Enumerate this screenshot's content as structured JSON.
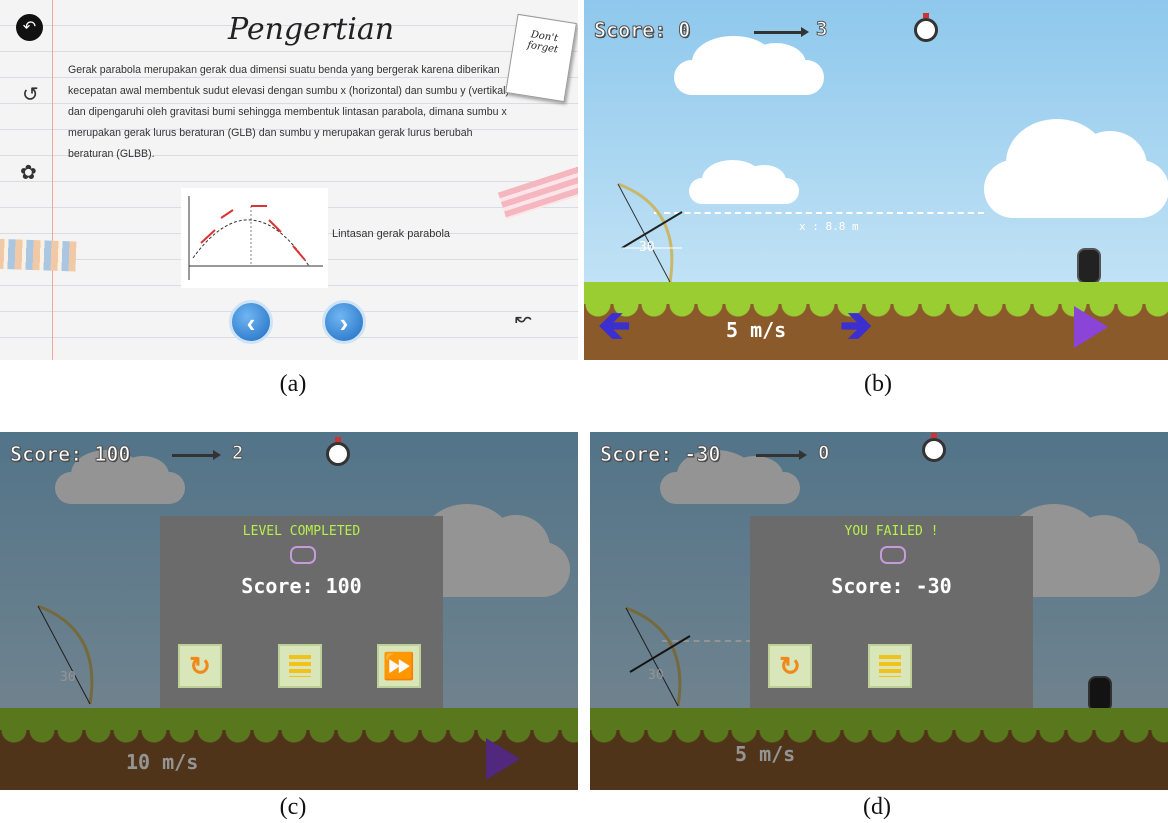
{
  "captions": [
    "(a)",
    "(b)",
    "(c)",
    "(d)"
  ],
  "panel_a": {
    "title": "Pengertian",
    "paragraph": "Gerak parabola merupakan gerak dua dimensi suatu benda yang bergerak karena diberikan kecepatan awal membentuk sudut elevasi dengan sumbu x (horizontal) dan sumbu y (vertikal) dan dipengaruhi oleh gravitasi bumi sehingga membentuk lintasan parabola, dimana sumbu x merupakan gerak lurus beraturan (GLB) dan sumbu y merupakan gerak lurus berubah beraturan (GLBB).",
    "figure_caption": "Lintasan gerak parabola",
    "sticky_note": "Don't forget",
    "back_icon": "back-arrow-icon",
    "prev_label": "‹",
    "next_label": "›"
  },
  "panel_b": {
    "score": "Score: 0",
    "arrows_left": "3",
    "angle": "30",
    "distance": "x : 8.8 m",
    "speed": "5 m/s",
    "left_arrow": "🡸",
    "right_arrow": "🡺"
  },
  "panel_c": {
    "score": "Score: 100",
    "arrows_left": "2",
    "angle": "30",
    "speed": "10 m/s",
    "dialog_title": "LEVEL COMPLETED",
    "dialog_score": "Score: 100"
  },
  "panel_d": {
    "score": "Score: -30",
    "arrows_left": "0",
    "angle": "30",
    "speed": "5 m/s",
    "dialog_title": "YOU FAILED !",
    "dialog_score": "Score: -30"
  },
  "colors": {
    "sky": "#8ec8ec",
    "grass": "#9acd32",
    "dirt": "#8b5a2b",
    "dialog_title": "#b6f04a",
    "play_button": "#8a45d8",
    "direction_arrows": "#3b2fcf"
  }
}
